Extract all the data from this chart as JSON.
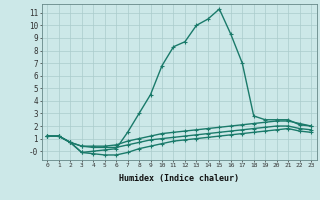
{
  "xlabel": "Humidex (Indice chaleur)",
  "background_color": "#cce8e8",
  "grid_color": "#aacccc",
  "line_color": "#1a7a6a",
  "xlim": [
    -0.5,
    23.5
  ],
  "ylim": [
    -0.7,
    11.7
  ],
  "xticks": [
    0,
    1,
    2,
    3,
    4,
    5,
    6,
    7,
    8,
    9,
    10,
    11,
    12,
    13,
    14,
    15,
    16,
    17,
    18,
    19,
    20,
    21,
    22,
    23
  ],
  "yticks": [
    0,
    1,
    2,
    3,
    4,
    5,
    6,
    7,
    8,
    9,
    10,
    11
  ],
  "ytick_labels": [
    "-0",
    "1",
    "2",
    "3",
    "4",
    "5",
    "6",
    "7",
    "8",
    "9",
    "10",
    "11"
  ],
  "lines": [
    {
      "x": [
        0,
        1,
        2,
        3,
        4,
        5,
        6,
        7,
        8,
        9,
        10,
        11,
        12,
        13,
        14,
        15,
        16,
        17,
        18,
        19,
        20,
        21,
        22,
        23
      ],
      "y": [
        1.2,
        1.2,
        0.7,
        -0.1,
        0.0,
        0.1,
        0.2,
        1.5,
        3.0,
        4.5,
        6.8,
        8.3,
        8.7,
        10.0,
        10.5,
        11.3,
        9.3,
        7.0,
        2.8,
        2.5,
        2.5,
        2.5,
        2.1,
        2.0
      ]
    },
    {
      "x": [
        0,
        1,
        2,
        3,
        4,
        5,
        6,
        7,
        8,
        9,
        10,
        11,
        12,
        13,
        14,
        15,
        16,
        17,
        18,
        19,
        20,
        21,
        22,
        23
      ],
      "y": [
        1.2,
        1.2,
        0.7,
        0.4,
        0.4,
        0.4,
        0.5,
        0.8,
        1.0,
        1.2,
        1.4,
        1.5,
        1.6,
        1.7,
        1.8,
        1.9,
        2.0,
        2.1,
        2.2,
        2.3,
        2.4,
        2.4,
        2.2,
        2.0
      ]
    },
    {
      "x": [
        0,
        1,
        2,
        3,
        4,
        5,
        6,
        7,
        8,
        9,
        10,
        11,
        12,
        13,
        14,
        15,
        16,
        17,
        18,
        19,
        20,
        21,
        22,
        23
      ],
      "y": [
        1.2,
        1.2,
        0.7,
        -0.1,
        -0.2,
        -0.3,
        -0.3,
        -0.1,
        0.2,
        0.4,
        0.6,
        0.8,
        0.9,
        1.0,
        1.1,
        1.2,
        1.3,
        1.4,
        1.5,
        1.6,
        1.7,
        1.8,
        1.6,
        1.5
      ]
    },
    {
      "x": [
        0,
        1,
        2,
        3,
        4,
        5,
        6,
        7,
        8,
        9,
        10,
        11,
        12,
        13,
        14,
        15,
        16,
        17,
        18,
        19,
        20,
        21,
        22,
        23
      ],
      "y": [
        1.2,
        1.2,
        0.7,
        0.4,
        0.3,
        0.3,
        0.3,
        0.5,
        0.7,
        0.9,
        1.0,
        1.1,
        1.2,
        1.3,
        1.4,
        1.5,
        1.6,
        1.7,
        1.8,
        1.9,
        2.0,
        2.0,
        1.8,
        1.7
      ]
    }
  ]
}
